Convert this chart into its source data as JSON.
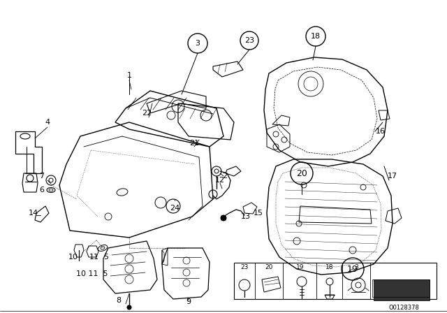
{
  "bg_color": "#ffffff",
  "line_color": "#000000",
  "fig_width": 6.4,
  "fig_height": 4.48,
  "dpi": 100,
  "diagram_note": "O0128378",
  "font_size_label": 8,
  "font_size_note": 6.5
}
